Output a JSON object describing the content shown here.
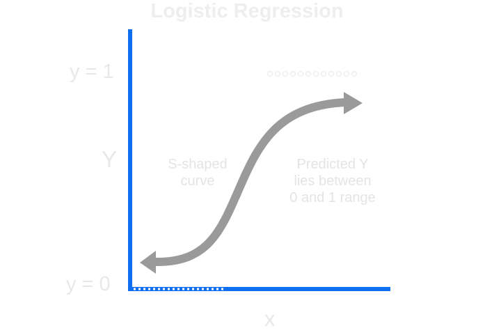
{
  "title": "Logistic Regression",
  "axes": {
    "y_top_label": "y = 1",
    "y_label": "Y",
    "y_bottom_label": "y = 0",
    "x_label": "x"
  },
  "annotations": {
    "curve_note_lines": [
      "S-shaped",
      "curve"
    ],
    "prediction_note_lines": [
      "Predicted Y",
      "lies between",
      "0 and 1 range"
    ]
  },
  "colors": {
    "axis": "#0f6ff0",
    "curve": "#9a9a9a",
    "text": "#ececec",
    "dots": "#eeeeee",
    "baseline_dots": "#ffffff",
    "background": "#ffffff"
  },
  "icons": {
    "curve_left_end": "arrowhead-left-icon",
    "curve_right_end": "arrowhead-right-icon"
  }
}
